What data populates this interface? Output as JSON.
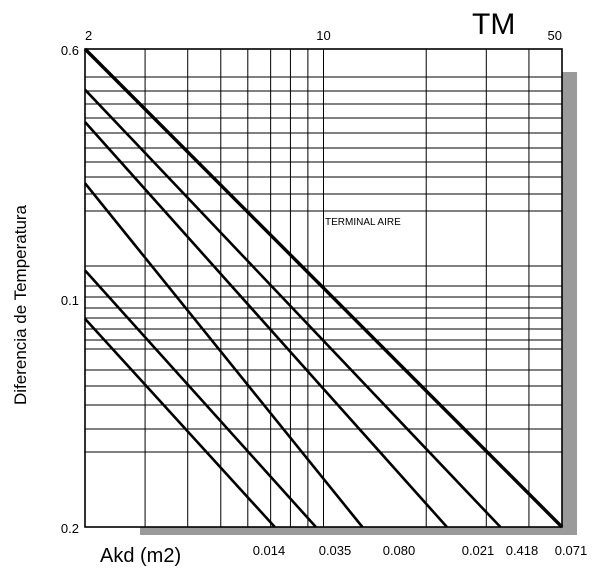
{
  "chart_data": {
    "type": "line",
    "title": "TM",
    "ylabel": "Diferencia de Temperatura",
    "xlabel": "Akd (m2)",
    "x_scale": "log",
    "y_scale": "log",
    "grid": true,
    "top_axis_ticks": [
      {
        "value": 2,
        "label": "2"
      },
      {
        "value": 10,
        "label": "10"
      },
      {
        "value": 50,
        "label": "50"
      }
    ],
    "left_axis_ticks": [
      {
        "value": 0.6,
        "label": "0.6"
      },
      {
        "value": 0.1,
        "label": "0.1"
      },
      {
        "value": 0.2,
        "label": "0.2"
      }
    ],
    "bottom_labels": [
      "0.014",
      "0.035",
      "0.080",
      "0.021",
      "0.418",
      "0.071"
    ],
    "annotation": "TERMINAL AIRE",
    "series": [
      {
        "x": [
          2.0,
          50.0
        ],
        "y": [
          0.6,
          0.012
        ]
      },
      {
        "x": [
          2.0,
          33.0
        ],
        "y": [
          0.43,
          0.012
        ]
      },
      {
        "x": [
          2.0,
          23.0
        ],
        "y": [
          0.33,
          0.012
        ]
      },
      {
        "x": [
          2.0,
          13.0
        ],
        "y": [
          0.2,
          0.012
        ]
      },
      {
        "x": [
          2.0,
          9.5
        ],
        "y": [
          0.098,
          0.012
        ]
      },
      {
        "x": [
          2.0,
          7.2
        ],
        "y": [
          0.066,
          0.012
        ]
      }
    ]
  }
}
